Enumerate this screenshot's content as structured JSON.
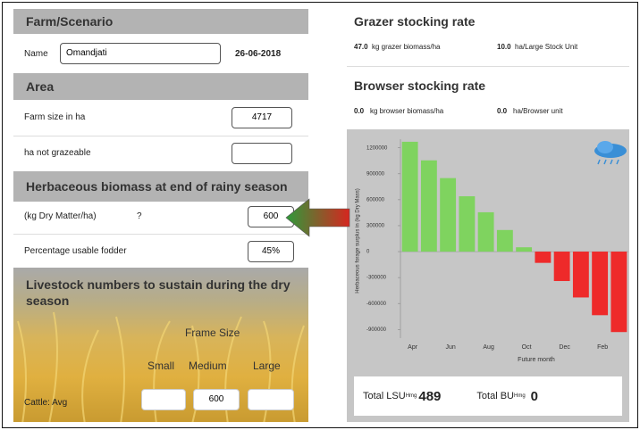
{
  "left": {
    "farm_header": "Farm/Scenario",
    "name_label": "Name",
    "name_value": "Omandjati",
    "date": "26-06-2018",
    "area_header": "Area",
    "farm_size_label": "Farm size in ha",
    "farm_size_value": "4717",
    "not_grazeable_label": "ha not grazeable",
    "biomass_header": "Herbaceous biomass at end of rainy season",
    "dm_label": "(kg Dry Matter/ha)",
    "help": "?",
    "dm_value": "600",
    "usable_label": "Percentage usable fodder",
    "usable_value": "45%",
    "livestock_header": "Livestock numbers to sustain during the dry season",
    "frame_size": "Frame Size",
    "sizes": [
      "Small",
      "Medium",
      "Large"
    ],
    "cattle_label": "Cattle: Avg",
    "cattle_medium": "600"
  },
  "right": {
    "grazer_title": "Grazer stocking rate",
    "grazer_biomass": "47.0",
    "grazer_biomass_unit": "kg grazer biomass/ha",
    "grazer_area": "10.0",
    "grazer_area_unit": "ha/Large Stock Unit",
    "browser_title": "Browser stocking rate",
    "browser_biomass": "0.0",
    "browser_biomass_unit": "kg browser biomass/ha",
    "browser_area": "0.0",
    "browser_area_unit": "ha/Browser unit",
    "lsu_label": "Total LSU",
    "lsu_sub": "Hmg",
    "lsu_value": "489",
    "bu_label": "Total BU",
    "bu_sub": "Hmg",
    "bu_value": "0"
  },
  "chart_data": {
    "type": "bar",
    "ylabel": "Herbaceous forage surplus in (kg Dry Mass)",
    "xlabel": "Future month",
    "categories": [
      "Apr",
      null,
      "Jun",
      null,
      "Aug",
      null,
      "Oct",
      null,
      "Dec",
      null,
      "Feb",
      null
    ],
    "values": [
      1270000,
      1055000,
      850000,
      640000,
      455000,
      250000,
      50000,
      -130000,
      -340000,
      -530000,
      -735000,
      -930000
    ],
    "positive_color": "#7fd35f",
    "negative_color": "#ee2a2a",
    "ylim": [
      -1000000,
      1300000
    ],
    "yticks": [
      -900000,
      -600000,
      -300000,
      0,
      300000,
      600000,
      900000,
      1200000
    ]
  }
}
